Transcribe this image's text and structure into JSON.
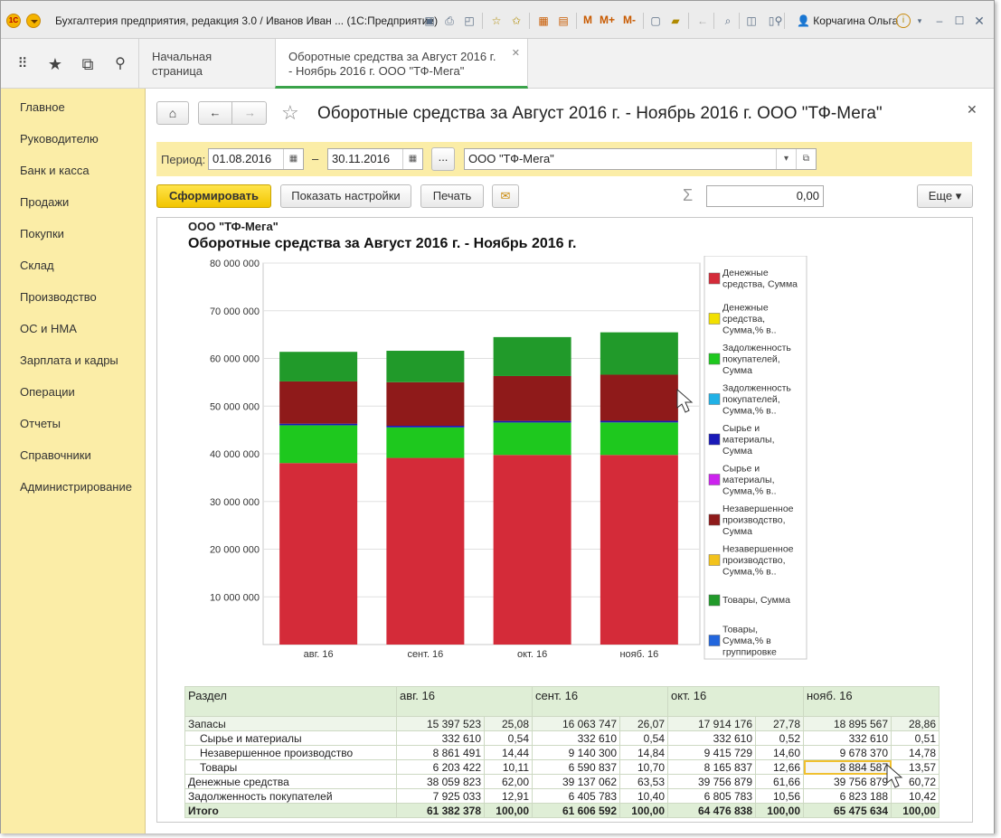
{
  "titlebar": {
    "app_title": "Бухгалтерия предприятия, редакция 3.0 / Иванов Иван ...  (1С:Предприятие)",
    "m1": "M",
    "m2": "M+",
    "m3": "M-",
    "user": "Корчагина Ольга"
  },
  "tabs": [
    {
      "label": "Начальная страница"
    },
    {
      "label_line1": "Оборотные средства за Август 2016 г.",
      "label_line2": "- Ноябрь 2016 г. ООО \"ТФ-Мега\""
    }
  ],
  "sidebar": {
    "items": [
      {
        "label": "Главное"
      },
      {
        "label": "Руководителю"
      },
      {
        "label": "Банк и касса"
      },
      {
        "label": "Продажи"
      },
      {
        "label": "Покупки"
      },
      {
        "label": "Склад"
      },
      {
        "label": "Производство"
      },
      {
        "label": "ОС и НМА"
      },
      {
        "label": "Зарплата и кадры"
      },
      {
        "label": "Операции"
      },
      {
        "label": "Отчеты"
      },
      {
        "label": "Справочники"
      },
      {
        "label": "Администрирование"
      }
    ]
  },
  "doc": {
    "title": "Оборотные средства за Август 2016 г. - Ноябрь 2016 г. ООО \"ТФ-Мега\"",
    "period_label": "Период:",
    "date_from": "01.08.2016",
    "dash": "–",
    "date_to": "30.11.2016",
    "ellipsis": "...",
    "org": "ООО \"ТФ-Мега\"",
    "generate_btn": "Сформировать",
    "settings_btn": "Показать настройки",
    "print_btn": "Печать",
    "sum_value": "0,00",
    "more_btn": "Еще"
  },
  "report": {
    "org": "ООО \"ТФ-Мега\"",
    "title": "Оборотные средства за Август 2016 г. - Ноябрь 2016 г."
  },
  "chart_data": {
    "type": "bar",
    "stacked": true,
    "categories": [
      "авг. 16",
      "сент. 16",
      "окт. 16",
      "нояб. 16"
    ],
    "ylim": [
      0,
      80000000
    ],
    "yticks": [
      "80 000 000",
      "70 000 000",
      "60 000 000",
      "50 000 000",
      "40 000 000",
      "30 000 000",
      "20 000 000",
      "10 000 000"
    ],
    "ytick_values": [
      80000000,
      70000000,
      60000000,
      50000000,
      40000000,
      30000000,
      20000000,
      10000000
    ],
    "series": [
      {
        "name": "Денежные средства, Сумма",
        "color": "#d42b39",
        "values": [
          38059823,
          39137062,
          39756879,
          39756879
        ]
      },
      {
        "name": "Задолженность покупателей, Сумма",
        "color": "#1ec81e",
        "values": [
          7925033,
          6405783,
          6805783,
          6823188
        ]
      },
      {
        "name": "Сырье и материалы, Сумма",
        "color": "#1a1ab8",
        "values": [
          332610,
          332610,
          332610,
          332610
        ]
      },
      {
        "name": "Незавершенное производство, Сумма",
        "color": "#8f1a1a",
        "values": [
          8861491,
          9140300,
          9415729,
          9678370
        ]
      },
      {
        "name": "Товары, Сумма",
        "color": "#219a2a",
        "values": [
          6203422,
          6590837,
          8165837,
          8884587
        ]
      }
    ],
    "legend": [
      {
        "line1": "Денежные",
        "line2": "средства, Сумма",
        "line3": "",
        "color": "#d42b39"
      },
      {
        "line1": "Денежные",
        "line2": "средства,",
        "line3": "Сумма,% в..",
        "color": "#f2e000"
      },
      {
        "line1": "Задолженность",
        "line2": "покупателей,",
        "line3": "Сумма",
        "color": "#1ec81e"
      },
      {
        "line1": "Задолженность",
        "line2": "покупателей,",
        "line3": "Сумма,% в..",
        "color": "#21b1e6"
      },
      {
        "line1": "Сырье и",
        "line2": "материалы,",
        "line3": "Сумма",
        "color": "#1a1ab8"
      },
      {
        "line1": "Сырье и",
        "line2": "материалы,",
        "line3": "Сумма,% в..",
        "color": "#cc22ee"
      },
      {
        "line1": "Незавершенное",
        "line2": "производство,",
        "line3": "Сумма",
        "color": "#8f1a1a"
      },
      {
        "line1": "Незавершенное",
        "line2": "производство,",
        "line3": "Сумма,% в..",
        "color": "#f2c21c"
      },
      {
        "line1": "Товары, Сумма",
        "line2": "",
        "line3": "",
        "color": "#219a2a"
      },
      {
        "line1": "Товары,",
        "line2": "Сумма,% в",
        "line3": "группировке",
        "color": "#2266dd"
      }
    ],
    "legend_position": "right"
  },
  "table": {
    "header": {
      "section": "Раздел",
      "m1": "авг. 16",
      "m2": "сент. 16",
      "m3": "окт. 16",
      "m4": "нояб. 16"
    },
    "rows": [
      {
        "name": "Запасы",
        "v": [
          "15 397 523",
          "25,08",
          "16 063 747",
          "26,07",
          "17 914 176",
          "27,78",
          "18 895 567",
          "28,86"
        ]
      },
      {
        "name": "Сырье и материалы",
        "v": [
          "332 610",
          "0,54",
          "332 610",
          "0,54",
          "332 610",
          "0,52",
          "332 610",
          "0,51"
        ]
      },
      {
        "name": "Незавершенное производство",
        "v": [
          "8 861 491",
          "14,44",
          "9 140 300",
          "14,84",
          "9 415 729",
          "14,60",
          "9 678 370",
          "14,78"
        ]
      },
      {
        "name": "Товары",
        "v": [
          "6 203 422",
          "10,11",
          "6 590 837",
          "10,70",
          "8 165 837",
          "12,66",
          "8 884 587",
          "13,57"
        ]
      },
      {
        "name": "Денежные средства",
        "v": [
          "38 059 823",
          "62,00",
          "39 137 062",
          "63,53",
          "39 756 879",
          "61,66",
          "39 756 879",
          "60,72"
        ]
      },
      {
        "name": "Задолженность покупателей",
        "v": [
          "7 925 033",
          "12,91",
          "6 405 783",
          "10,40",
          "6 805 783",
          "10,56",
          "6 823 188",
          "10,42"
        ]
      },
      {
        "name": "Итого",
        "v": [
          "61 382 378",
          "100,00",
          "61 606 592",
          "100,00",
          "64 476 838",
          "100,00",
          "65 475 634",
          "100,00"
        ]
      }
    ]
  },
  "colors": {
    "sidebar": "#fbeda7",
    "accent": "#f2c500",
    "tab_active": "#3aa34a"
  }
}
